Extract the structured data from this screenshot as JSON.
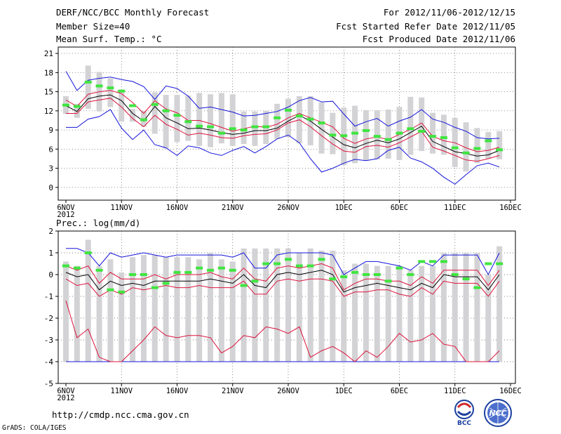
{
  "header": {
    "title": "DERF/NCC/BCC Monthly Forecast",
    "member_size": "Member Size=40",
    "variable": "Mean Surf. Temp.: °C",
    "forecast_period": "For 2012/11/06-2012/12/15",
    "started_refer_date": "Fcst Started Refer Date 2012/11/05",
    "produced_date": "Fcst Produced Date 2012/11/06"
  },
  "lower_panel_title": "Prec.: log(mm/d)",
  "footer": {
    "url": "http://cmdp.ncc.cma.gov.cn",
    "grads_credit": "GrADS: COLA/IGES",
    "logo_bcc": "BCC",
    "logo_ncc": "NCC"
  },
  "colors": {
    "ensemble_bar": "#d3d3d6",
    "max_line": "#1414dc",
    "min_line": "#1414dc",
    "spread_line": "#dc143c",
    "mean_line": "#000000",
    "tick_mark": "#3fe53f",
    "grid": "#555555"
  },
  "chart_data": [
    {
      "id": "temperature",
      "type": "line",
      "title": "Mean Surf. Temp.: °C",
      "x_tick_labels": [
        "6NOV",
        "11NOV",
        "16NOV",
        "21NOV",
        "26NOV",
        "1DEC",
        "6DEC",
        "11DEC",
        "16DEC"
      ],
      "x_year_label": "2012",
      "ylim": [
        -2,
        22
      ],
      "y_ticks": [
        0,
        3,
        6,
        9,
        12,
        15,
        18,
        21
      ],
      "days": [
        0,
        1,
        2,
        3,
        4,
        5,
        6,
        7,
        8,
        9,
        10,
        11,
        12,
        13,
        14,
        15,
        16,
        17,
        18,
        19,
        20,
        21,
        22,
        23,
        24,
        25,
        26,
        27,
        28,
        29,
        30,
        31,
        32,
        33,
        34,
        35,
        36,
        37,
        38,
        39
      ],
      "series": [
        {
          "name": "max",
          "values": [
            18.2,
            15.2,
            16.8,
            17.1,
            17.3,
            16.9,
            16.6,
            15.8,
            13.8,
            15.9,
            15.5,
            14.3,
            12.4,
            12.6,
            12.2,
            11.8,
            11.2,
            11.3,
            11.6,
            11.9,
            12.6,
            13.6,
            14.1,
            13.4,
            13.5,
            11.5,
            9.6,
            10.3,
            10.8,
            9.6,
            10.4,
            11.0,
            12.2,
            10.7,
            10.2,
            9.4,
            8.8,
            7.8,
            7.6,
            7.7
          ]
        },
        {
          "name": "min",
          "values": [
            9.4,
            9.4,
            10.7,
            11.1,
            12.2,
            9.3,
            7.5,
            9.0,
            6.7,
            6.2,
            5.0,
            6.5,
            6.2,
            5.4,
            5.0,
            5.8,
            6.4,
            5.4,
            6.4,
            7.6,
            8.2,
            7.0,
            4.5,
            2.4,
            3.0,
            3.8,
            4.4,
            4.2,
            4.5,
            5.8,
            6.3,
            4.6,
            4.0,
            3.0,
            1.6,
            0.5,
            2.0,
            3.4,
            3.8,
            3.2
          ]
        },
        {
          "name": "upper_spread",
          "values": [
            13.7,
            12.7,
            14.6,
            15.0,
            15.2,
            14.7,
            13.3,
            11.6,
            13.6,
            12.3,
            11.7,
            10.5,
            10.5,
            10.0,
            9.4,
            8.8,
            9.2,
            9.6,
            9.4,
            9.9,
            10.9,
            11.6,
            10.9,
            10.2,
            9.5,
            7.7,
            6.9,
            7.6,
            7.9,
            7.5,
            8.3,
            9.1,
            10.1,
            8.0,
            7.3,
            7.0,
            6.2,
            5.6,
            5.8,
            6.3
          ]
        },
        {
          "name": "lower_spread",
          "values": [
            11.6,
            11.6,
            13.4,
            13.7,
            14.0,
            12.6,
            10.8,
            9.5,
            11.3,
            9.9,
            9.1,
            8.2,
            8.5,
            8.2,
            7.8,
            7.7,
            8.1,
            8.3,
            8.4,
            9.0,
            10.1,
            10.6,
            9.5,
            8.1,
            6.8,
            5.7,
            5.5,
            6.4,
            6.6,
            6.3,
            7.0,
            7.9,
            8.8,
            6.3,
            5.7,
            5.0,
            4.3,
            4.1,
            4.5,
            5.0
          ]
        },
        {
          "name": "ensemble_mean",
          "values": [
            12.8,
            11.9,
            13.9,
            14.3,
            14.5,
            13.6,
            11.6,
            10.4,
            12.7,
            10.9,
            10.1,
            9.2,
            9.3,
            9.0,
            8.6,
            8.3,
            8.5,
            8.9,
            8.9,
            9.3,
            10.4,
            11.3,
            10.4,
            9.1,
            7.9,
            6.7,
            6.2,
            6.9,
            7.4,
            7.0,
            7.6,
            8.6,
            9.6,
            7.2,
            6.4,
            5.6,
            5.3,
            4.9,
            5.1,
            5.8
          ]
        },
        {
          "name": "bar_high",
          "values": [
            14.3,
            13.1,
            19.1,
            18.1,
            17.1,
            15.3,
            12.3,
            12.0,
            14.9,
            14.5,
            14.5,
            14.4,
            14.8,
            14.6,
            14.8,
            14.6,
            11.9,
            11.9,
            12.0,
            13.1,
            13.9,
            14.3,
            14.3,
            13.3,
            11.7,
            12.5,
            12.8,
            12.1,
            12.1,
            12.2,
            12.6,
            14.2,
            14.1,
            11.7,
            11.4,
            10.9,
            10.2,
            9.3,
            8.7,
            8.8
          ]
        },
        {
          "name": "bar_low",
          "values": [
            11.5,
            10.9,
            12.3,
            11.9,
            12.6,
            10.3,
            10.3,
            9.5,
            8.4,
            6.1,
            7.1,
            7.3,
            6.5,
            6.3,
            6.9,
            6.5,
            6.8,
            6.5,
            6.8,
            7.6,
            7.9,
            6.9,
            6.6,
            5.3,
            5.2,
            3.5,
            3.8,
            4.2,
            4.4,
            4.5,
            4.3,
            5.1,
            5.7,
            5.3,
            5.1,
            3.2,
            2.5,
            3.8,
            4.5,
            4.4
          ]
        },
        {
          "name": "observed",
          "values": [
            12.9,
            12.7,
            16.5,
            15.9,
            15.6,
            15.1,
            12.8,
            10.6,
            13.0,
            12.0,
            11.3,
            10.3,
            9.6,
            9.5,
            8.5,
            9.2,
            9.0,
            9.5,
            9.5,
            10.9,
            12.1,
            11.2,
            10.7,
            10.1,
            8.2,
            8.1,
            8.5,
            8.9,
            8.0,
            7.5,
            8.5,
            9.2,
            8.8,
            8.0,
            7.8,
            6.2,
            5.4,
            6.1,
            7.3,
            5.9
          ]
        }
      ]
    },
    {
      "id": "precipitation",
      "type": "line",
      "title": "Prec.: log(mm/d)",
      "x_tick_labels": [
        "6NOV",
        "11NOV",
        "16NOV",
        "21NOV",
        "26NOV",
        "1DEC",
        "6DEC",
        "11DEC",
        "16DEC"
      ],
      "x_year_label": "2012",
      "ylim": [
        -5,
        2
      ],
      "y_ticks": [
        -5,
        -4,
        -3,
        -2,
        -1,
        0,
        1,
        2
      ],
      "days": [
        0,
        1,
        2,
        3,
        4,
        5,
        6,
        7,
        8,
        9,
        10,
        11,
        12,
        13,
        14,
        15,
        16,
        17,
        18,
        19,
        20,
        21,
        22,
        23,
        24,
        25,
        26,
        27,
        28,
        29,
        30,
        31,
        32,
        33,
        34,
        35,
        36,
        37,
        38,
        39
      ],
      "series": [
        {
          "name": "max",
          "values": [
            1.2,
            1.2,
            1.0,
            0.4,
            1.0,
            0.8,
            0.9,
            1.0,
            0.9,
            0.8,
            0.9,
            0.9,
            0.9,
            0.9,
            0.9,
            0.8,
            1.0,
            0.3,
            0.3,
            0.9,
            1.0,
            1.0,
            1.0,
            1.0,
            0.9,
            0.0,
            0.3,
            0.6,
            0.6,
            0.5,
            0.4,
            0.2,
            0.6,
            0.4,
            0.9,
            0.9,
            0.9,
            0.9,
            0.0,
            1.0
          ]
        },
        {
          "name": "min",
          "values": [
            -4.0,
            -4.0,
            -4.0,
            -4.0,
            -4.0,
            -4.0,
            -4.0,
            -4.0,
            -4.0,
            -4.0,
            -4.0,
            -4.0,
            -4.0,
            -4.0,
            -4.0,
            -4.0,
            -4.0,
            -4.0,
            -4.0,
            -4.0,
            -4.0,
            -4.0,
            -4.0,
            -4.0,
            -4.0,
            -4.0,
            -4.0,
            -4.0,
            -4.0,
            -4.0,
            -4.0,
            -4.0,
            -4.0,
            -4.0,
            -4.0,
            -4.0,
            -4.0,
            -4.0,
            -4.0,
            -4.0
          ]
        },
        {
          "name": "upper_spread",
          "values": [
            0.4,
            0.2,
            0.4,
            -0.4,
            0.1,
            -0.2,
            -0.2,
            -0.2,
            0.0,
            -0.2,
            0.0,
            0.0,
            0.0,
            0.1,
            -0.1,
            -0.2,
            0.3,
            -0.2,
            -0.3,
            0.3,
            0.4,
            0.3,
            0.4,
            0.5,
            0.3,
            -0.7,
            -0.4,
            -0.2,
            -0.2,
            -0.3,
            -0.3,
            -0.5,
            -0.1,
            -0.4,
            0.2,
            0.2,
            0.2,
            0.2,
            -0.5,
            0.2
          ]
        },
        {
          "name": "lower_spread",
          "values": [
            -0.2,
            -0.5,
            -0.4,
            -1.0,
            -0.7,
            -0.9,
            -0.6,
            -0.7,
            -0.6,
            -0.5,
            -0.6,
            -0.6,
            -0.5,
            -0.6,
            -0.6,
            -0.6,
            -0.3,
            -0.9,
            -0.9,
            -0.3,
            -0.2,
            -0.3,
            -0.2,
            -0.2,
            -0.3,
            -1.0,
            -0.8,
            -0.8,
            -0.7,
            -0.7,
            -0.9,
            -1.0,
            -0.6,
            -0.9,
            -0.3,
            -0.4,
            -0.4,
            -0.4,
            -1.0,
            -0.3
          ]
        },
        {
          "name": "ensemble_mean",
          "values": [
            0.1,
            -0.1,
            0.0,
            -0.7,
            -0.3,
            -0.5,
            -0.4,
            -0.5,
            -0.3,
            -0.3,
            -0.3,
            -0.3,
            -0.3,
            -0.2,
            -0.3,
            -0.4,
            0.0,
            -0.5,
            -0.6,
            0.0,
            0.1,
            0.0,
            0.1,
            0.2,
            0.0,
            -0.8,
            -0.6,
            -0.5,
            -0.4,
            -0.5,
            -0.6,
            -0.7,
            -0.4,
            -0.6,
            0.0,
            -0.1,
            -0.1,
            -0.1,
            -0.7,
            0.0
          ]
        },
        {
          "name": "min_member",
          "values": [
            -1.2,
            -2.9,
            -2.5,
            -3.8,
            -4.0,
            -4.0,
            -3.5,
            -3.0,
            -2.4,
            -2.8,
            -2.9,
            -2.8,
            -2.8,
            -2.9,
            -3.6,
            -3.3,
            -2.8,
            -2.9,
            -2.4,
            -2.5,
            -2.7,
            -2.4,
            -3.8,
            -3.5,
            -3.3,
            -3.6,
            -4.0,
            -3.5,
            -3.8,
            -3.3,
            -2.7,
            -3.1,
            -3.0,
            -2.7,
            -3.2,
            -3.3,
            -4.0,
            -4.0,
            -4.0,
            -3.5
          ]
        },
        {
          "name": "bar_high",
          "values": [
            0.6,
            0.4,
            1.6,
            0.4,
            0.7,
            0.1,
            0.8,
            0.9,
            0.9,
            0.8,
            0.8,
            0.8,
            0.7,
            1.0,
            0.7,
            0.6,
            1.2,
            1.2,
            1.2,
            1.2,
            1.2,
            1.0,
            1.2,
            1.1,
            1.1,
            0.2,
            0.5,
            0.5,
            0.4,
            0.4,
            0.4,
            0.2,
            0.4,
            0.4,
            1.0,
            1.0,
            1.0,
            1.0,
            0.0,
            1.3
          ]
        },
        {
          "name": "bar_low",
          "values": [
            -4.0,
            -4.0,
            -4.0,
            -4.0,
            -4.0,
            -4.0,
            -4.0,
            -4.0,
            -4.0,
            -4.0,
            -4.0,
            -4.0,
            -4.0,
            -4.0,
            -4.0,
            -4.0,
            -4.0,
            -4.0,
            -4.0,
            -4.0,
            -4.0,
            -4.0,
            -4.0,
            -4.0,
            -4.0,
            -4.0,
            -4.0,
            -4.0,
            -4.0,
            -4.0,
            -4.0,
            -4.0,
            -4.0,
            -4.0,
            -4.0,
            -4.0,
            -4.0,
            -4.0,
            -4.0,
            -4.0
          ]
        },
        {
          "name": "observed",
          "values": [
            0.4,
            0.3,
            1.0,
            0.2,
            -0.7,
            -0.8,
            0.0,
            0.0,
            -0.6,
            -0.4,
            0.1,
            0.1,
            0.3,
            0.2,
            0.3,
            0.2,
            -0.5,
            -0.3,
            0.5,
            0.5,
            0.7,
            0.4,
            0.4,
            0.7,
            -0.2,
            -0.1,
            0.1,
            0.0,
            0.0,
            -0.3,
            0.3,
            0.0,
            0.6,
            0.6,
            0.6,
            0.0,
            -0.2,
            -0.6,
            0.5,
            0.5
          ]
        }
      ]
    }
  ]
}
